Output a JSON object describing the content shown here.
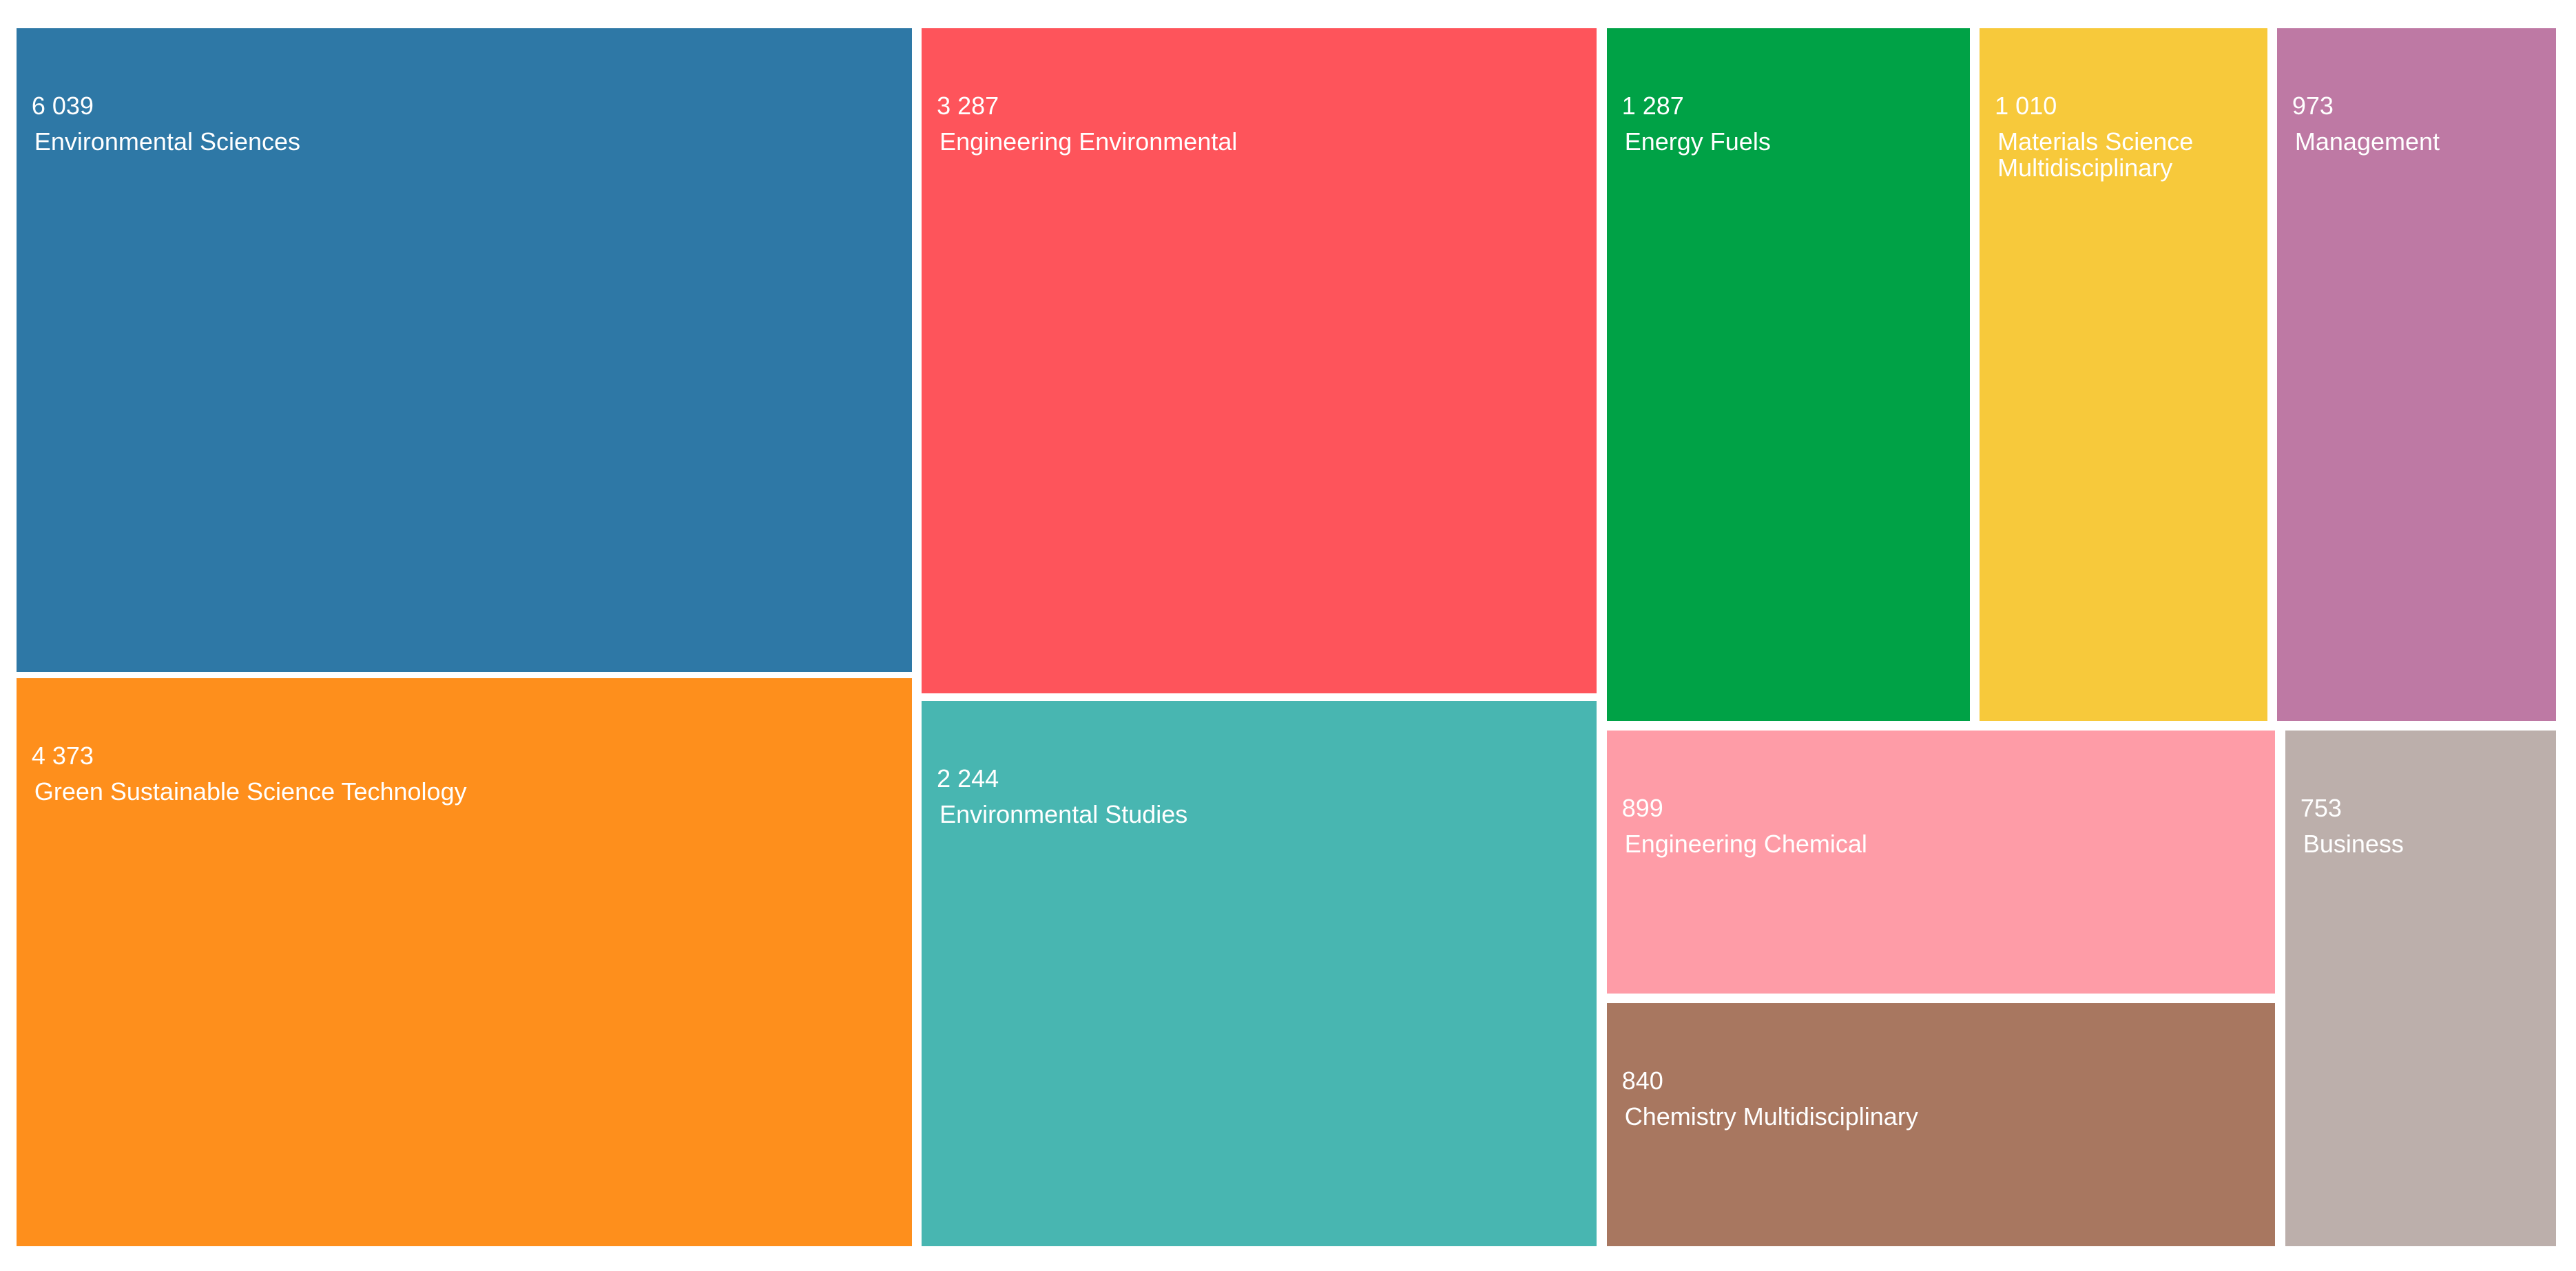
{
  "chart_data": {
    "type": "treemap",
    "categories": [
      "Environmental Sciences",
      "Green Sustainable Science Technology",
      "Engineering Environmental",
      "Environmental Studies",
      "Energy Fuels",
      "Materials Science Multidisciplinary",
      "Management",
      "Engineering Chemical",
      "Chemistry Multidisciplinary",
      "Business"
    ],
    "values": [
      6039,
      4373,
      3287,
      2244,
      1287,
      1010,
      973,
      899,
      840,
      753
    ],
    "value_labels": [
      "6 039",
      "4 373",
      "3 287",
      "2 244",
      "1 287",
      "1 010",
      "973",
      "899",
      "840",
      "753"
    ],
    "colors": [
      "#2e78a6",
      "#fe8f1c",
      "#fe545b",
      "#48b6b1",
      "#00a246",
      "#f7c93b",
      "#be79a4",
      "#fe9ca7",
      "#a87760",
      "#bcafab"
    ]
  }
}
